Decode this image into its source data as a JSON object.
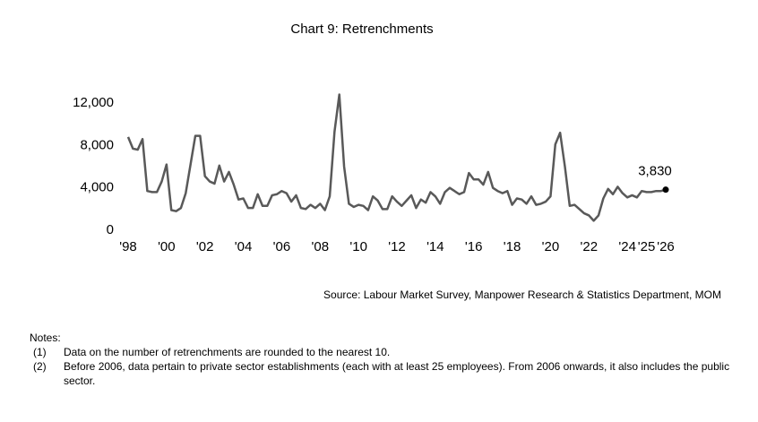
{
  "chart_data": {
    "type": "line",
    "title": "Chart 9: Retrenchments",
    "x": [
      1998,
      1998.25,
      1998.5,
      1998.75,
      1999,
      1999.25,
      1999.5,
      1999.75,
      2000,
      2000.25,
      2000.5,
      2000.75,
      2001,
      2001.25,
      2001.5,
      2001.75,
      2002,
      2002.25,
      2002.5,
      2002.75,
      2003,
      2003.25,
      2003.5,
      2003.75,
      2004,
      2004.25,
      2004.5,
      2004.75,
      2005,
      2005.25,
      2005.5,
      2005.75,
      2006,
      2006.25,
      2006.5,
      2006.75,
      2007,
      2007.25,
      2007.5,
      2007.75,
      2008,
      2008.25,
      2008.5,
      2008.75,
      2009,
      2009.25,
      2009.5,
      2009.75,
      2010,
      2010.25,
      2010.5,
      2010.75,
      2011,
      2011.25,
      2011.5,
      2011.75,
      2012,
      2012.25,
      2012.5,
      2012.75,
      2013,
      2013.25,
      2013.5,
      2013.75,
      2014,
      2014.25,
      2014.5,
      2014.75,
      2015,
      2015.25,
      2015.5,
      2015.75,
      2016,
      2016.25,
      2016.5,
      2016.75,
      2017,
      2017.25,
      2017.5,
      2017.75,
      2018,
      2018.25,
      2018.5,
      2018.75,
      2019,
      2019.25,
      2019.5,
      2019.75,
      2020,
      2020.25,
      2020.5,
      2020.75,
      2021,
      2021.25,
      2021.5,
      2021.75,
      2022,
      2022.25,
      2022.5,
      2022.75,
      2023,
      2023.25,
      2023.5,
      2023.75,
      2024,
      2024.25,
      2024.5,
      2024.75,
      2025,
      2025.25,
      2025.5,
      2025.75,
      2026
    ],
    "series": [
      {
        "color": "#595959",
        "values": [
          8800,
          7700,
          7600,
          8600,
          3700,
          3600,
          3600,
          4600,
          6200,
          1900,
          1800,
          2100,
          3500,
          6200,
          8900,
          8900,
          5100,
          4600,
          4400,
          6100,
          4600,
          5500,
          4300,
          2900,
          3000,
          2100,
          2100,
          3400,
          2300,
          2300,
          3300,
          3400,
          3700,
          3500,
          2700,
          3300,
          2100,
          2000,
          2400,
          2100,
          2500,
          1900,
          3200,
          9300,
          12800,
          6000,
          2500,
          2200,
          2400,
          2300,
          1900,
          3200,
          2800,
          2000,
          2000,
          3200,
          2700,
          2300,
          2800,
          3300,
          2100,
          2900,
          2600,
          3600,
          3200,
          2500,
          3600,
          4000,
          3700,
          3400,
          3600,
          5400,
          4800,
          4800,
          4300,
          5500,
          4000,
          3700,
          3500,
          3700,
          2400,
          3000,
          2900,
          2500,
          3200,
          2400,
          2500,
          2700,
          3200,
          8100,
          9200,
          6000,
          2300,
          2400,
          2000,
          1600,
          1400,
          900,
          1400,
          3000,
          3900,
          3400,
          4100,
          3500,
          3100,
          3300,
          3100,
          3700,
          3600,
          3600,
          3700,
          3700,
          3830
        ],
        "value_labels": [
          null,
          null,
          null,
          null,
          null,
          null,
          null,
          null,
          null,
          null,
          null,
          null,
          null,
          null,
          null,
          null,
          null,
          null,
          null,
          null,
          null,
          null,
          null,
          null,
          null,
          null,
          null,
          null,
          null,
          null,
          null,
          null,
          null,
          null,
          null,
          null,
          null,
          null,
          null,
          null,
          null,
          null,
          null,
          null,
          null,
          null,
          null,
          null,
          null,
          null,
          null,
          null,
          null,
          null,
          null,
          null,
          null,
          null,
          null,
          null,
          null,
          null,
          null,
          null,
          null,
          null,
          null,
          null,
          null,
          null,
          null,
          null,
          null,
          null,
          null,
          null,
          null,
          null,
          null,
          null,
          null,
          null,
          null,
          null,
          null,
          null,
          null,
          null,
          null,
          null,
          null,
          null,
          null,
          null,
          null,
          null,
          null,
          null,
          null,
          null,
          null,
          null,
          null,
          null,
          null,
          null,
          null,
          null,
          null,
          null,
          null,
          null,
          "3,830"
        ]
      }
    ],
    "xlim": [
      1998,
      2026
    ],
    "xticks": [
      {
        "value": 1998,
        "label": "'98"
      },
      {
        "value": 2000,
        "label": "'00"
      },
      {
        "value": 2002,
        "label": "'02"
      },
      {
        "value": 2004,
        "label": "'04"
      },
      {
        "value": 2006,
        "label": "'06"
      },
      {
        "value": 2008,
        "label": "'08"
      },
      {
        "value": 2010,
        "label": "'10"
      },
      {
        "value": 2012,
        "label": "'12"
      },
      {
        "value": 2014,
        "label": "'14"
      },
      {
        "value": 2016,
        "label": "'16"
      },
      {
        "value": 2018,
        "label": "'18"
      },
      {
        "value": 2020,
        "label": "'20"
      },
      {
        "value": 2022,
        "label": "'22"
      },
      {
        "value": 2024,
        "label": "'24"
      },
      {
        "value": 2025,
        "label": "'25"
      },
      {
        "value": 2026,
        "label": "'26"
      }
    ],
    "ylim": [
      0,
      12000
    ],
    "yticks": [
      0,
      {
        "value": 4000,
        "label": "4,000"
      },
      {
        "value": 8000,
        "label": "8,000"
      },
      {
        "value": 12000,
        "label": "12,000"
      }
    ],
    "grid": false
  },
  "source": "Source: Labour Market Survey, Manpower Research & Statistics Department, MOM",
  "notes": {
    "heading": "Notes:",
    "items": [
      {
        "num": "(1)",
        "text": "Data on the number of retrenchments are rounded to the nearest 10."
      },
      {
        "num": "(2)",
        "text": "Before 2006, data pertain to private sector establishments (each with at least 25 employees). From 2006 onwards, it also includes the public sector."
      }
    ]
  }
}
